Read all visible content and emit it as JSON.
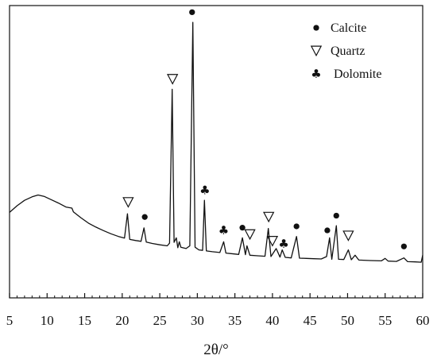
{
  "chart_data": {
    "type": "line",
    "title": "",
    "xlabel": "2θ/°",
    "ylabel": "",
    "xlim": [
      5,
      60
    ],
    "ylim": [
      0,
      100
    ],
    "grid": false,
    "x_ticks": [
      5,
      10,
      15,
      20,
      25,
      30,
      35,
      40,
      45,
      50,
      55,
      60
    ],
    "legend": {
      "placement": "top-right",
      "entries": [
        {
          "symbol": "dot",
          "label": "Calcite"
        },
        {
          "symbol": "triangle",
          "label": "Quartz"
        },
        {
          "symbol": "club",
          "label": "Dolomite"
        }
      ]
    },
    "series": [
      {
        "points": [
          [
            5.0,
            26.0
          ],
          [
            6.0,
            28.5
          ],
          [
            7.0,
            30.5
          ],
          [
            8.0,
            31.8
          ],
          [
            8.8,
            32.5
          ],
          [
            9.6,
            32.0
          ],
          [
            10.5,
            30.8
          ],
          [
            11.5,
            29.5
          ],
          [
            12.5,
            28.0
          ],
          [
            13.3,
            27.6
          ],
          [
            13.5,
            26.2
          ],
          [
            14.5,
            24.0
          ],
          [
            15.5,
            22.0
          ],
          [
            16.5,
            20.5
          ],
          [
            17.5,
            19.2
          ],
          [
            18.5,
            18.0
          ],
          [
            19.5,
            17.0
          ],
          [
            20.3,
            16.4
          ],
          [
            20.7,
            25.5
          ],
          [
            21.0,
            15.9
          ],
          [
            21.8,
            15.5
          ],
          [
            22.5,
            15.2
          ],
          [
            22.9,
            20.2
          ],
          [
            23.2,
            14.9
          ],
          [
            24.0,
            14.4
          ],
          [
            25.0,
            13.9
          ],
          [
            26.0,
            13.5
          ],
          [
            26.3,
            14.5
          ],
          [
            26.65,
            72.0
          ],
          [
            26.9,
            14.8
          ],
          [
            27.2,
            16.5
          ],
          [
            27.4,
            12.8
          ],
          [
            27.6,
            15.0
          ],
          [
            27.8,
            13.0
          ],
          [
            28.5,
            12.5
          ],
          [
            29.0,
            13.5
          ],
          [
            29.4,
            97.0
          ],
          [
            29.7,
            13.0
          ],
          [
            30.2,
            12.0
          ],
          [
            30.7,
            11.8
          ],
          [
            30.95,
            30.5
          ],
          [
            31.2,
            11.6
          ],
          [
            32.0,
            11.3
          ],
          [
            33.0,
            11.0
          ],
          [
            33.5,
            15.0
          ],
          [
            33.8,
            10.8
          ],
          [
            34.5,
            10.6
          ],
          [
            35.5,
            10.3
          ],
          [
            36.0,
            16.5
          ],
          [
            36.4,
            10.2
          ],
          [
            36.6,
            13.5
          ],
          [
            37.0,
            10.0
          ],
          [
            38.0,
            9.8
          ],
          [
            39.0,
            9.6
          ],
          [
            39.45,
            20.0
          ],
          [
            39.8,
            9.5
          ],
          [
            40.5,
            12.5
          ],
          [
            41.0,
            9.3
          ],
          [
            41.3,
            12.0
          ],
          [
            41.7,
            9.2
          ],
          [
            42.5,
            9.0
          ],
          [
            43.2,
            17.0
          ],
          [
            43.6,
            8.9
          ],
          [
            44.5,
            8.8
          ],
          [
            45.5,
            8.7
          ],
          [
            46.5,
            8.6
          ],
          [
            47.2,
            9.5
          ],
          [
            47.6,
            16.5
          ],
          [
            47.9,
            8.5
          ],
          [
            48.5,
            21.0
          ],
          [
            48.8,
            8.5
          ],
          [
            49.5,
            8.4
          ],
          [
            50.1,
            12.0
          ],
          [
            50.5,
            8.3
          ],
          [
            51.0,
            10.0
          ],
          [
            51.5,
            8.2
          ],
          [
            53.0,
            8.0
          ],
          [
            54.5,
            7.9
          ],
          [
            55.0,
            8.8
          ],
          [
            55.4,
            7.8
          ],
          [
            56.5,
            7.7
          ],
          [
            57.5,
            9.0
          ],
          [
            58.0,
            7.6
          ],
          [
            59.0,
            7.5
          ],
          [
            59.8,
            7.4
          ],
          [
            60.0,
            10.0
          ]
        ]
      }
    ],
    "annotations": [
      {
        "x": 29.3,
        "y": 99.0,
        "symbol": "dot"
      },
      {
        "x": 26.7,
        "y": 74.0,
        "symbol": "triangle"
      },
      {
        "x": 31.0,
        "y": 32.5,
        "symbol": "club"
      },
      {
        "x": 20.8,
        "y": 28.0,
        "symbol": "triangle"
      },
      {
        "x": 23.0,
        "y": 22.5,
        "symbol": "dot"
      },
      {
        "x": 33.5,
        "y": 17.5,
        "symbol": "club"
      },
      {
        "x": 36.0,
        "y": 18.5,
        "symbol": "dot"
      },
      {
        "x": 37.0,
        "y": 16.0,
        "symbol": "triangle"
      },
      {
        "x": 39.5,
        "y": 22.5,
        "symbol": "triangle"
      },
      {
        "x": 40.0,
        "y": 13.5,
        "symbol": "triangle"
      },
      {
        "x": 41.5,
        "y": 12.5,
        "symbol": "club"
      },
      {
        "x": 43.2,
        "y": 19.0,
        "symbol": "dot"
      },
      {
        "x": 47.3,
        "y": 17.5,
        "symbol": "dot"
      },
      {
        "x": 48.5,
        "y": 23.0,
        "symbol": "dot"
      },
      {
        "x": 50.1,
        "y": 15.5,
        "symbol": "triangle"
      },
      {
        "x": 57.5,
        "y": 11.5,
        "symbol": "dot"
      }
    ]
  }
}
